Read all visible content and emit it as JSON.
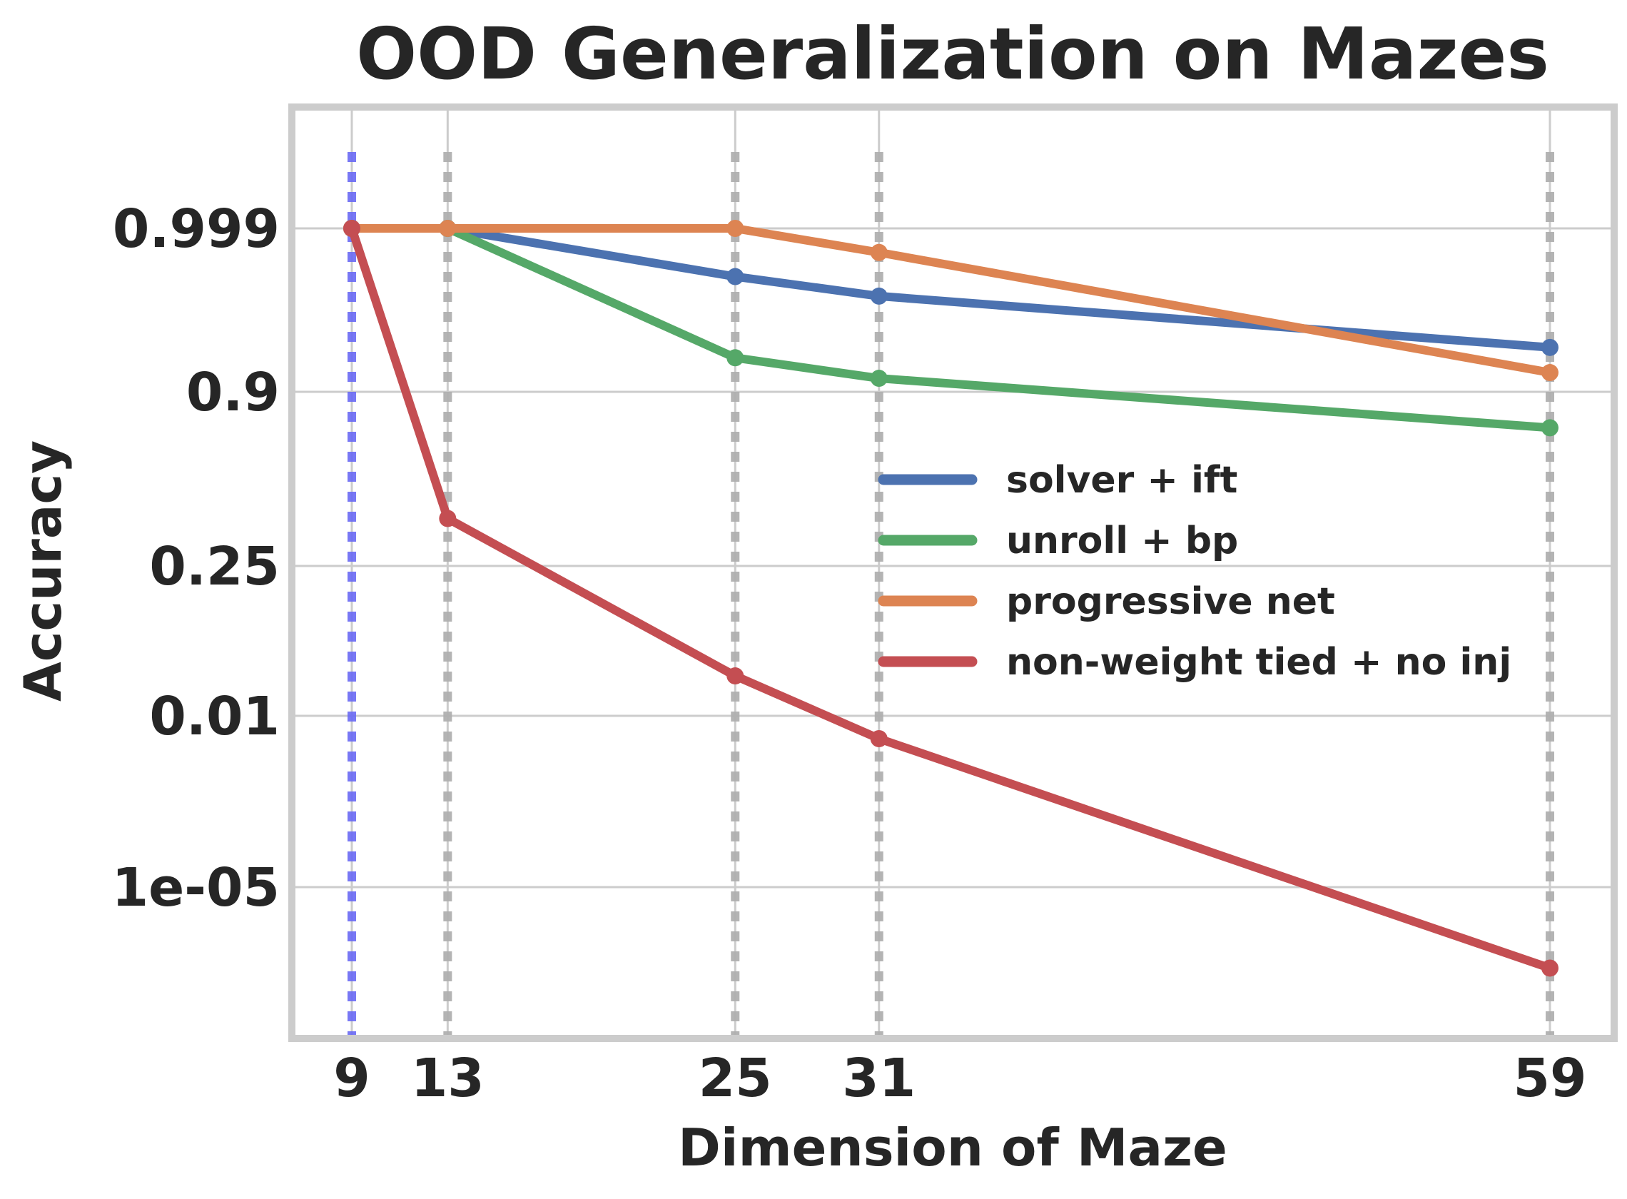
{
  "chart_data": {
    "type": "line",
    "title": "OOD Generalization on Mazes",
    "xlabel": "Dimension of Maze",
    "ylabel": "Accuracy",
    "x": [
      9,
      13,
      25,
      31,
      59
    ],
    "x_tick_labels": [
      "9",
      "13",
      "25",
      "31",
      "59"
    ],
    "y_scale": "logit-like",
    "y_tick_labels": [
      "0.999",
      "0.9",
      "0.25",
      "0.01",
      "1e-05"
    ],
    "vertical_reference_lines": [
      9,
      13,
      25,
      31,
      59
    ],
    "highlighted_reference_line": 9,
    "grid": true,
    "legend_position": "center-right",
    "series": [
      {
        "name": "solver + ift",
        "color": "#4c72b0",
        "values": [
          0.999,
          0.999,
          0.996,
          0.993,
          0.97
        ]
      },
      {
        "name": "unroll + bp",
        "color": "#55a868",
        "values": [
          0.999,
          0.999,
          0.96,
          0.93,
          0.82
        ]
      },
      {
        "name": "progressive net",
        "color": "#dd8452",
        "values": [
          0.999,
          0.999,
          0.999,
          0.998,
          0.94
        ]
      },
      {
        "name": "non-weight tied + no inj",
        "color": "#c44e52",
        "values": [
          0.999,
          0.45,
          0.025,
          0.004,
          3.8e-07
        ]
      }
    ],
    "colors": {
      "grid": "#cccccc",
      "frame": "#cccccc",
      "ref_line": "#b0b0b0",
      "highlight_line": "#6a6af5",
      "text": "#262626"
    }
  }
}
